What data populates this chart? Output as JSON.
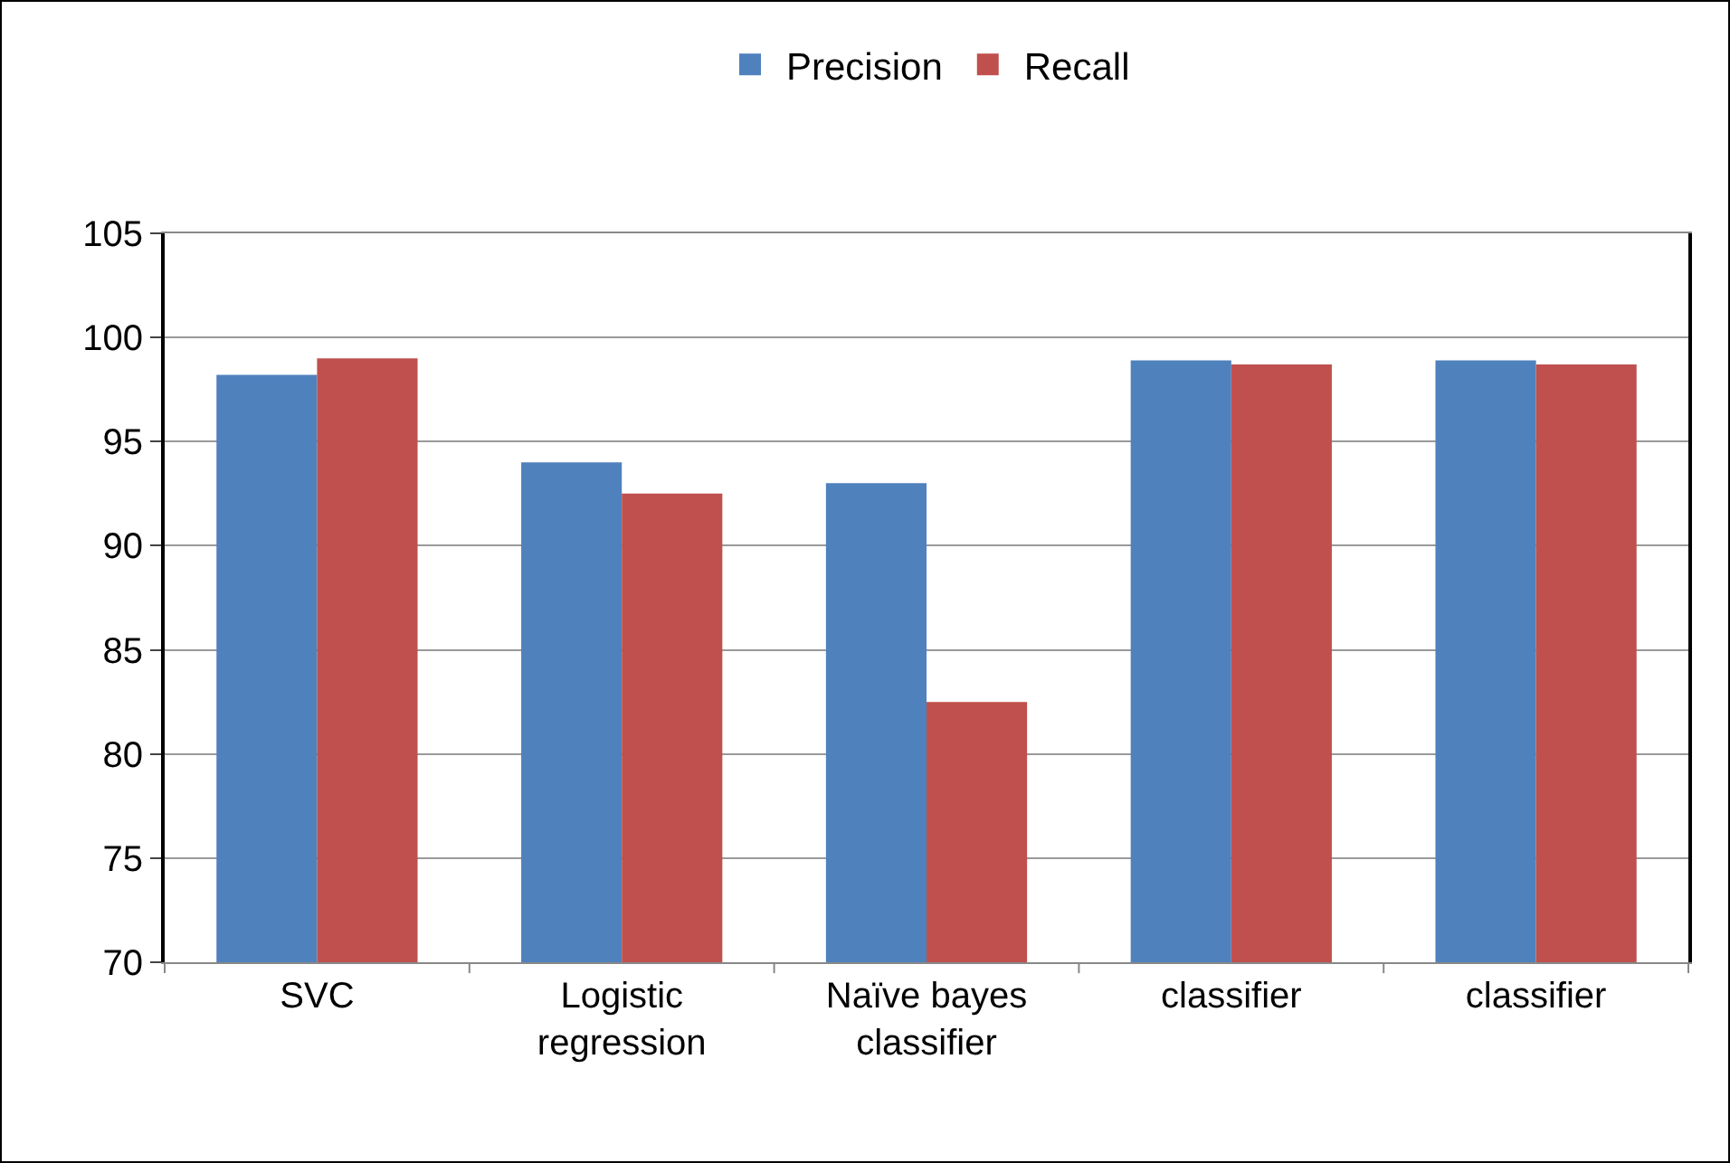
{
  "chart_data": {
    "type": "bar",
    "categories": [
      "SVC",
      "Logistic regression",
      "Naïve bayes classifier",
      "classifier",
      "classifier"
    ],
    "series": [
      {
        "name": "Precision",
        "color": "#4f81bd",
        "values": [
          98.2,
          94,
          93,
          98.9,
          98.9
        ]
      },
      {
        "name": "Recall",
        "color": "#c0504d",
        "values": [
          99,
          92.5,
          82.5,
          98.7,
          98.7
        ]
      }
    ],
    "ylim": [
      70,
      105
    ],
    "yticks": [
      70,
      75,
      80,
      85,
      90,
      95,
      100,
      105
    ],
    "grid": "y",
    "legend": "top"
  }
}
